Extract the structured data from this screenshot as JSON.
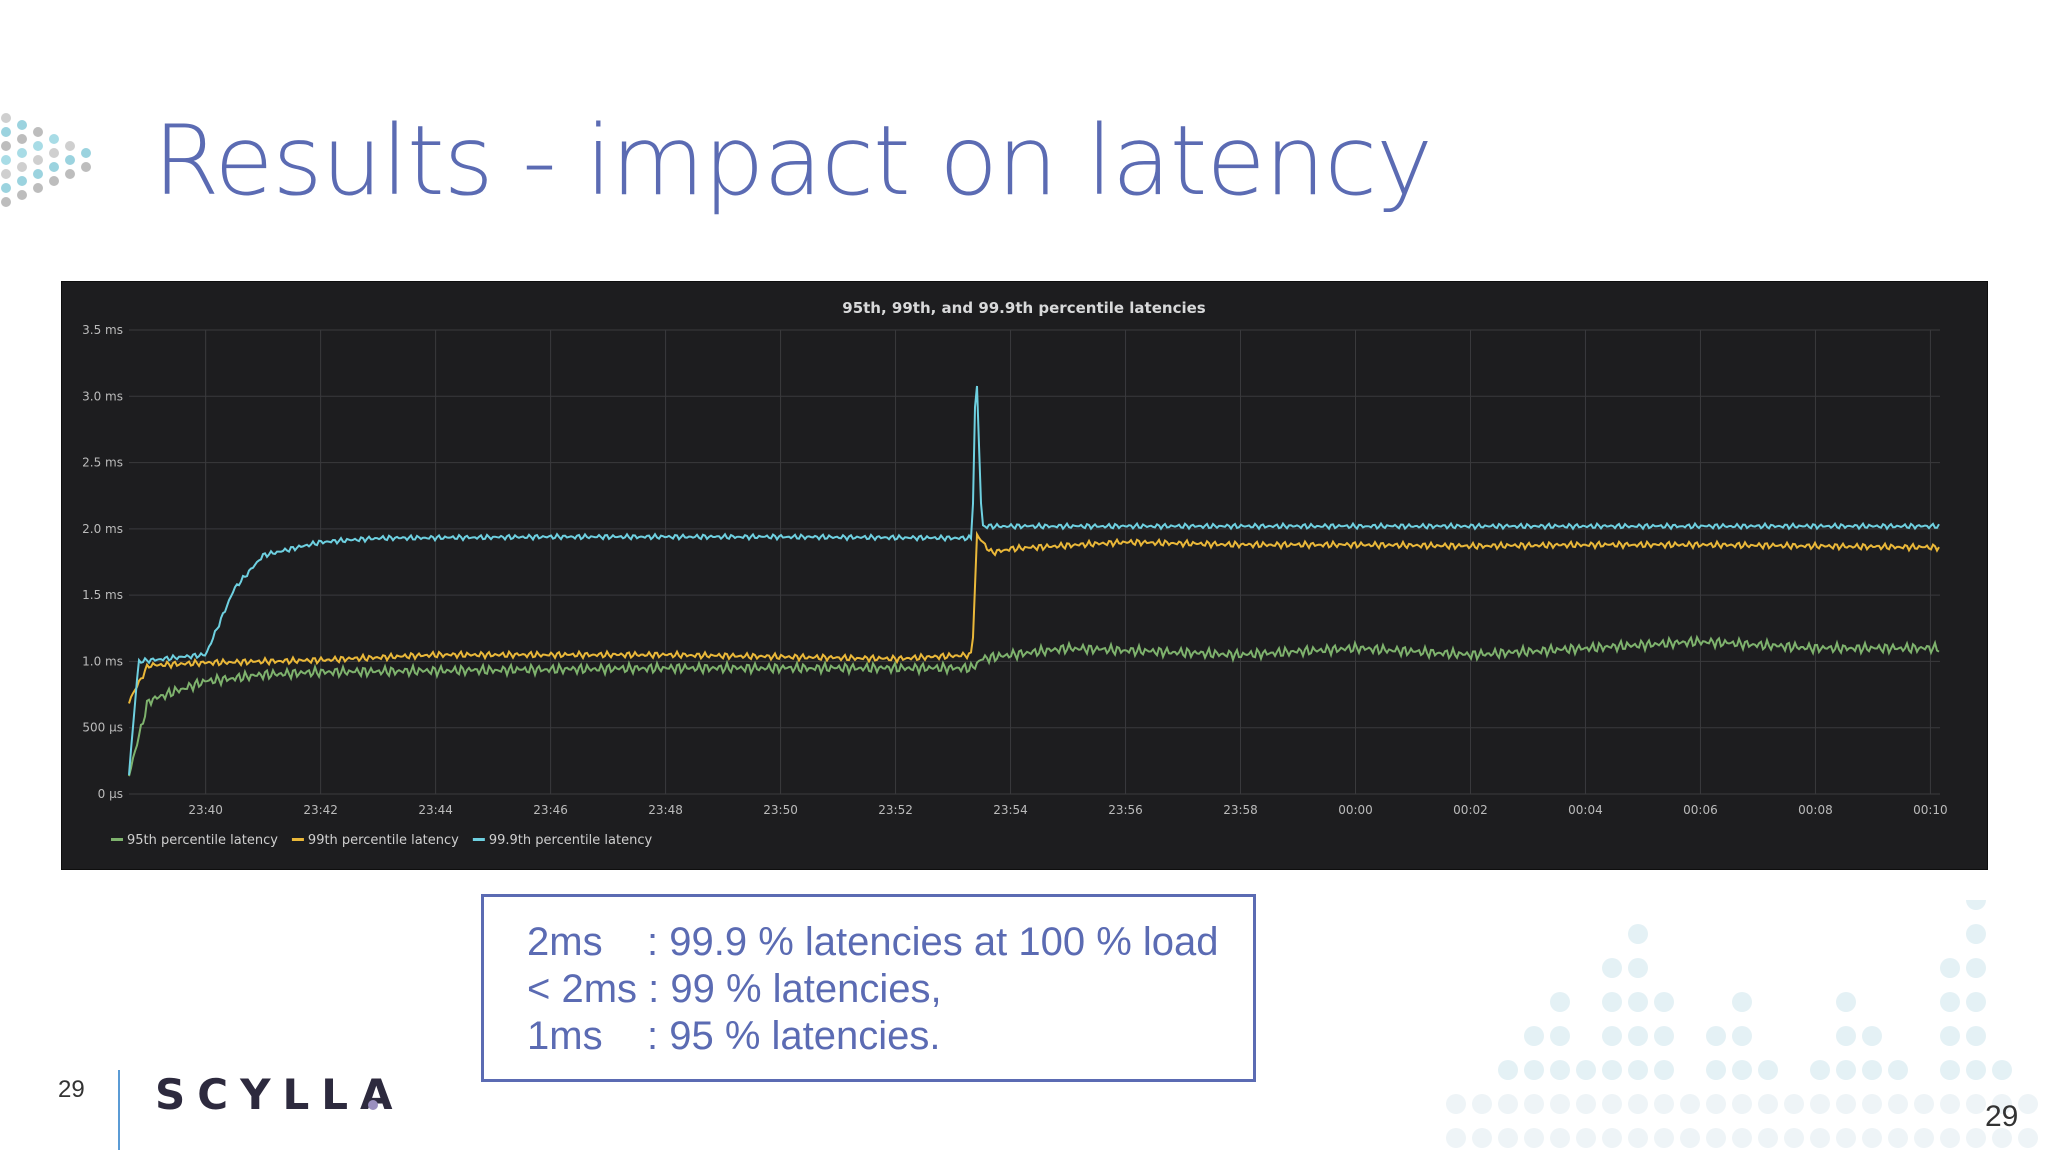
{
  "slide": {
    "title": "Results - impact on latency",
    "page_number": "29",
    "corner_page_number": "29",
    "logo": "SCYLLA"
  },
  "callout": {
    "lines": [
      "2ms    : 99.9 % latencies at 100 % load",
      "< 2ms : 99 % latencies,",
      "1ms    : 95 % latencies."
    ]
  },
  "colors": {
    "title": "#5b6bb3",
    "p95": "#7eb26d",
    "p99": "#eab839",
    "p999": "#6ed0e0",
    "panel_bg": "#1d1d1f"
  },
  "chart_data": {
    "type": "line",
    "title": "95th, 99th, and 99.9th percentile latencies",
    "xlabel": "",
    "ylabel": "",
    "y_unit": "ms",
    "ylim": [
      0,
      3.5
    ],
    "x_range": [
      "23:38:40",
      "00:10:10"
    ],
    "y_ticks": [
      {
        "value": 0,
        "label": "0 µs"
      },
      {
        "value": 0.5,
        "label": "500 µs"
      },
      {
        "value": 1.0,
        "label": "1.0 ms"
      },
      {
        "value": 1.5,
        "label": "1.5 ms"
      },
      {
        "value": 2.0,
        "label": "2.0 ms"
      },
      {
        "value": 2.5,
        "label": "2.5 ms"
      },
      {
        "value": 3.0,
        "label": "3.0 ms"
      },
      {
        "value": 3.5,
        "label": "3.5 ms"
      }
    ],
    "x_ticks": [
      "23:40",
      "23:42",
      "23:44",
      "23:46",
      "23:48",
      "23:50",
      "23:52",
      "23:54",
      "23:56",
      "23:58",
      "00:00",
      "00:02",
      "00:04",
      "00:06",
      "00:08",
      "00:10"
    ],
    "grid": true,
    "legend_position": "bottom-left",
    "series": [
      {
        "name": "95th percentile latency",
        "color": "#7eb26d",
        "points": [
          [
            "23:38:40",
            0.15
          ],
          [
            "23:39:00",
            0.7
          ],
          [
            "23:39:30",
            0.78
          ],
          [
            "23:40:00",
            0.85
          ],
          [
            "23:41:00",
            0.9
          ],
          [
            "23:42:00",
            0.92
          ],
          [
            "23:44:00",
            0.93
          ],
          [
            "23:48:00",
            0.95
          ],
          [
            "23:52:00",
            0.95
          ],
          [
            "23:53:20",
            0.95
          ],
          [
            "23:53:30",
            1.02
          ],
          [
            "23:54:00",
            1.05
          ],
          [
            "23:55:00",
            1.1
          ],
          [
            "23:58:00",
            1.05
          ],
          [
            "00:00:00",
            1.1
          ],
          [
            "00:02:00",
            1.05
          ],
          [
            "00:04:00",
            1.1
          ],
          [
            "00:06:00",
            1.15
          ],
          [
            "00:08:00",
            1.1
          ],
          [
            "00:10:10",
            1.1
          ]
        ]
      },
      {
        "name": "99th percentile latency",
        "color": "#eab839",
        "points": [
          [
            "23:38:40",
            0.7
          ],
          [
            "23:39:00",
            0.97
          ],
          [
            "23:40:00",
            0.99
          ],
          [
            "23:42:00",
            1.01
          ],
          [
            "23:44:00",
            1.05
          ],
          [
            "23:46:00",
            1.05
          ],
          [
            "23:48:00",
            1.05
          ],
          [
            "23:52:00",
            1.02
          ],
          [
            "23:53:20",
            1.05
          ],
          [
            "23:53:25",
            1.95
          ],
          [
            "23:53:40",
            1.82
          ],
          [
            "23:54:00",
            1.85
          ],
          [
            "23:56:00",
            1.9
          ],
          [
            "23:58:00",
            1.88
          ],
          [
            "00:00:00",
            1.88
          ],
          [
            "00:02:00",
            1.87
          ],
          [
            "00:04:00",
            1.88
          ],
          [
            "00:06:00",
            1.88
          ],
          [
            "00:08:00",
            1.87
          ],
          [
            "00:10:10",
            1.86
          ]
        ]
      },
      {
        "name": "99.9th percentile latency",
        "color": "#6ed0e0",
        "points": [
          [
            "23:38:40",
            0.15
          ],
          [
            "23:38:50",
            1.0
          ],
          [
            "23:39:30",
            1.03
          ],
          [
            "23:40:00",
            1.05
          ],
          [
            "23:40:30",
            1.55
          ],
          [
            "23:41:00",
            1.8
          ],
          [
            "23:42:00",
            1.9
          ],
          [
            "23:43:00",
            1.93
          ],
          [
            "23:46:00",
            1.94
          ],
          [
            "23:50:00",
            1.94
          ],
          [
            "23:53:20",
            1.93
          ],
          [
            "23:53:24",
            3.28
          ],
          [
            "23:53:30",
            2.02
          ],
          [
            "23:56:00",
            2.02
          ],
          [
            "00:00:00",
            2.02
          ],
          [
            "00:05:00",
            2.02
          ],
          [
            "00:10:10",
            2.02
          ]
        ]
      }
    ]
  }
}
